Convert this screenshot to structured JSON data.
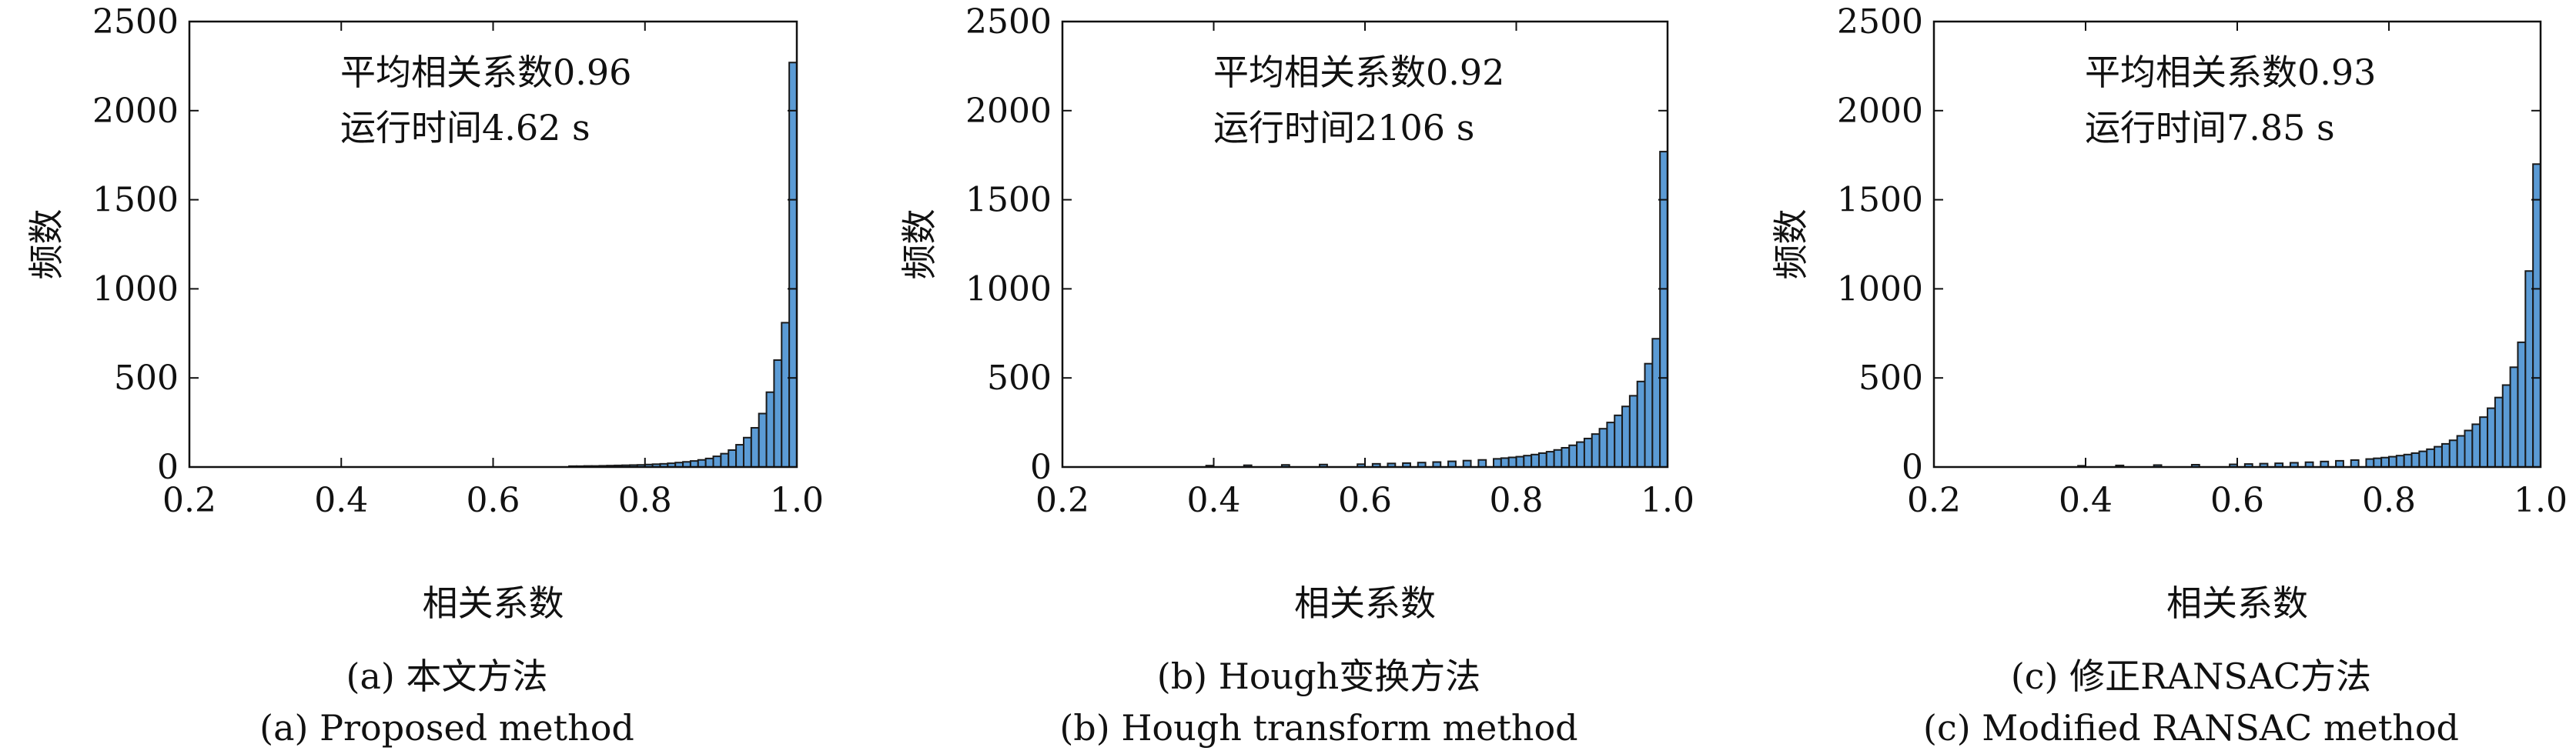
{
  "chart_data": [
    {
      "type": "bar",
      "subcaption_zh": "(a) 本文方法",
      "subcaption_en": "(a) Proposed method",
      "xlabel": "相关系数",
      "ylabel": "频数",
      "xlim": [
        0.2,
        1.0
      ],
      "ylim": [
        0,
        2500
      ],
      "xticks": [
        "0.2",
        "0.4",
        "0.6",
        "0.8",
        "1.0"
      ],
      "yticks": [
        "0",
        "500",
        "1000",
        "1500",
        "2000",
        "2500"
      ],
      "annotation_line1": "平均相关系数0.96",
      "annotation_line2": "运行时间4.62 s",
      "bar_color": "#5b9bd5",
      "bin_width": 0.01,
      "x": [
        0.71,
        0.72,
        0.73,
        0.74,
        0.75,
        0.76,
        0.77,
        0.78,
        0.79,
        0.8,
        0.81,
        0.82,
        0.83,
        0.84,
        0.85,
        0.86,
        0.87,
        0.88,
        0.89,
        0.9,
        0.91,
        0.92,
        0.93,
        0.94,
        0.95,
        0.96,
        0.97,
        0.98,
        0.99,
        1.0
      ],
      "values": [
        5,
        5,
        6,
        6,
        7,
        8,
        9,
        10,
        11,
        12,
        14,
        16,
        18,
        21,
        25,
        29,
        34,
        40,
        48,
        60,
        75,
        95,
        125,
        165,
        220,
        300,
        420,
        600,
        810,
        2270
      ]
    },
    {
      "type": "bar",
      "subcaption_zh": "(b) Hough变换方法",
      "subcaption_en": "(b) Hough transform method",
      "xlabel": "相关系数",
      "ylabel": "频数",
      "xlim": [
        0.2,
        1.0
      ],
      "ylim": [
        0,
        2500
      ],
      "xticks": [
        "0.2",
        "0.4",
        "0.6",
        "0.8",
        "1.0"
      ],
      "yticks": [
        "0",
        "500",
        "1000",
        "1500",
        "2000",
        "2500"
      ],
      "annotation_line1": "平均相关系数0.92",
      "annotation_line2": "运行时间2106 s",
      "bar_color": "#5b9bd5",
      "bin_width": 0.01,
      "x": [
        0.4,
        0.45,
        0.5,
        0.55,
        0.6,
        0.62,
        0.64,
        0.66,
        0.68,
        0.7,
        0.72,
        0.74,
        0.76,
        0.78,
        0.79,
        0.8,
        0.81,
        0.82,
        0.83,
        0.84,
        0.85,
        0.86,
        0.87,
        0.88,
        0.89,
        0.9,
        0.91,
        0.92,
        0.93,
        0.94,
        0.95,
        0.96,
        0.97,
        0.98,
        0.99,
        1.0
      ],
      "values": [
        8,
        10,
        12,
        14,
        16,
        18,
        20,
        22,
        25,
        28,
        32,
        36,
        40,
        46,
        50,
        54,
        58,
        64,
        70,
        78,
        86,
        96,
        108,
        122,
        140,
        160,
        185,
        215,
        250,
        290,
        340,
        400,
        480,
        580,
        720,
        1770
      ]
    },
    {
      "type": "bar",
      "subcaption_zh": "(c) 修正RANSAC方法",
      "subcaption_en": "(c) Modified RANSAC method",
      "xlabel": "相关系数",
      "ylabel": "频数",
      "xlim": [
        0.2,
        1.0
      ],
      "ylim": [
        0,
        2500
      ],
      "xticks": [
        "0.2",
        "0.4",
        "0.6",
        "0.8",
        "1.0"
      ],
      "yticks": [
        "0",
        "500",
        "1000",
        "1500",
        "2000",
        "2500"
      ],
      "annotation_line1": "平均相关系数0.93",
      "annotation_line2": "运行时间7.85 s",
      "bar_color": "#5b9bd5",
      "bin_width": 0.01,
      "x": [
        0.4,
        0.45,
        0.5,
        0.55,
        0.6,
        0.62,
        0.64,
        0.66,
        0.68,
        0.7,
        0.72,
        0.74,
        0.76,
        0.78,
        0.79,
        0.8,
        0.81,
        0.82,
        0.83,
        0.84,
        0.85,
        0.86,
        0.87,
        0.88,
        0.89,
        0.9,
        0.91,
        0.92,
        0.93,
        0.94,
        0.95,
        0.96,
        0.97,
        0.98,
        0.99,
        1.0
      ],
      "values": [
        7,
        9,
        11,
        13,
        15,
        17,
        19,
        21,
        24,
        27,
        31,
        35,
        39,
        45,
        49,
        53,
        58,
        64,
        70,
        78,
        88,
        100,
        114,
        130,
        150,
        175,
        205,
        240,
        280,
        330,
        390,
        460,
        560,
        700,
        1100,
        1700
      ]
    }
  ]
}
